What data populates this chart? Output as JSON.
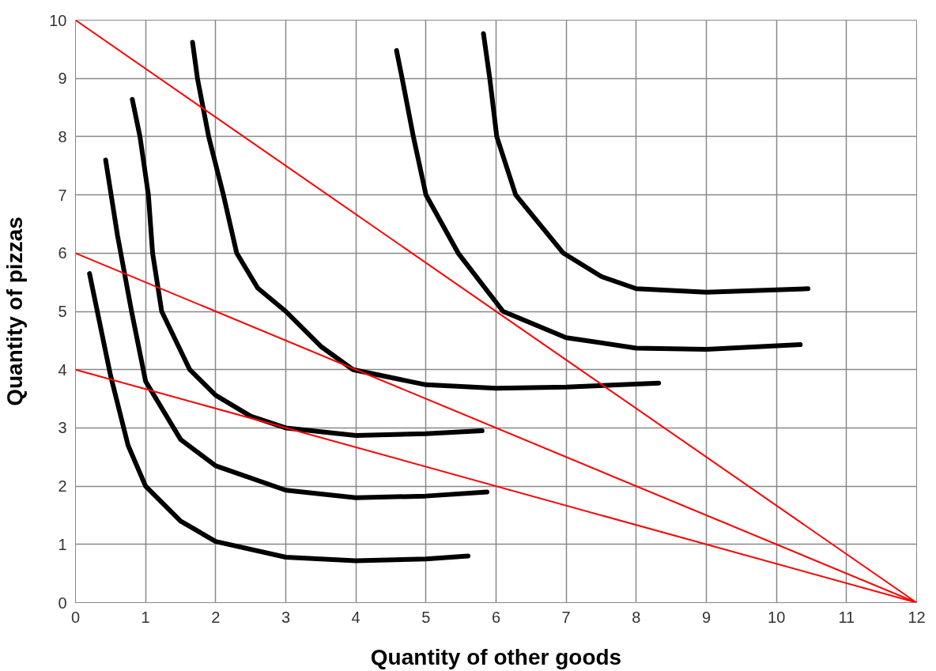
{
  "chart_data": {
    "type": "line",
    "xlabel": "Quantity of other goods",
    "ylabel": "Quantity of pizzas",
    "xlim": [
      0,
      12
    ],
    "ylim": [
      0,
      10
    ],
    "xticks": [
      0,
      1,
      2,
      3,
      4,
      5,
      6,
      7,
      8,
      9,
      10,
      11,
      12
    ],
    "yticks": [
      0,
      1,
      2,
      3,
      4,
      5,
      6,
      7,
      8,
      9,
      10
    ],
    "grid": true,
    "marker": "none",
    "line_style": "solid",
    "series": [
      {
        "color": "#000000",
        "x": [
          0.2,
          0.5,
          0.75,
          1,
          1.5,
          2,
          3,
          4,
          5,
          5.6
        ],
        "values": [
          5.65,
          3.9,
          2.7,
          2.0,
          1.4,
          1.05,
          0.78,
          0.72,
          0.75,
          0.8
        ]
      },
      {
        "color": "#000000",
        "x": [
          0.43,
          0.6,
          0.8,
          1,
          1.5,
          2,
          3,
          4,
          5,
          5.87
        ],
        "values": [
          7.6,
          6.3,
          5.0,
          3.8,
          2.8,
          2.35,
          1.93,
          1.8,
          1.83,
          1.9
        ]
      },
      {
        "color": "#000000",
        "x": [
          0.81,
          0.92,
          1.04,
          1.1,
          1.23,
          1.63,
          2,
          2.5,
          3,
          4,
          5,
          5.8
        ],
        "values": [
          8.64,
          8,
          7,
          6,
          5,
          4,
          3.56,
          3.2,
          3.0,
          2.87,
          2.9,
          2.95
        ]
      },
      {
        "color": "#000000",
        "x": [
          1.67,
          1.74,
          1.9,
          2.11,
          2.3,
          2.6,
          3,
          3.5,
          3.96,
          5,
          6,
          7,
          8.32
        ],
        "values": [
          9.62,
          9,
          8,
          7,
          6,
          5.4,
          5,
          4.4,
          4,
          3.74,
          3.68,
          3.7,
          3.77
        ]
      },
      {
        "color": "#000000",
        "x": [
          4.58,
          4.66,
          4.82,
          5,
          5.46,
          6.1,
          7,
          8,
          9,
          10.34
        ],
        "values": [
          9.48,
          9,
          8,
          7,
          6,
          5,
          4.55,
          4.37,
          4.35,
          4.43
        ]
      },
      {
        "color": "#000000",
        "x": [
          5.82,
          5.91,
          6.01,
          6.28,
          6.96,
          7.5,
          8,
          9,
          10.45
        ],
        "values": [
          9.77,
          9,
          8,
          7,
          6,
          5.6,
          5.39,
          5.33,
          5.39
        ]
      },
      {
        "color": "#ff0000",
        "x": [
          0,
          12
        ],
        "values": [
          10,
          0
        ]
      },
      {
        "color": "#ff0000",
        "x": [
          0,
          12
        ],
        "values": [
          6,
          0
        ]
      },
      {
        "color": "#ff0000",
        "x": [
          0,
          12
        ],
        "values": [
          4,
          0
        ]
      }
    ]
  }
}
